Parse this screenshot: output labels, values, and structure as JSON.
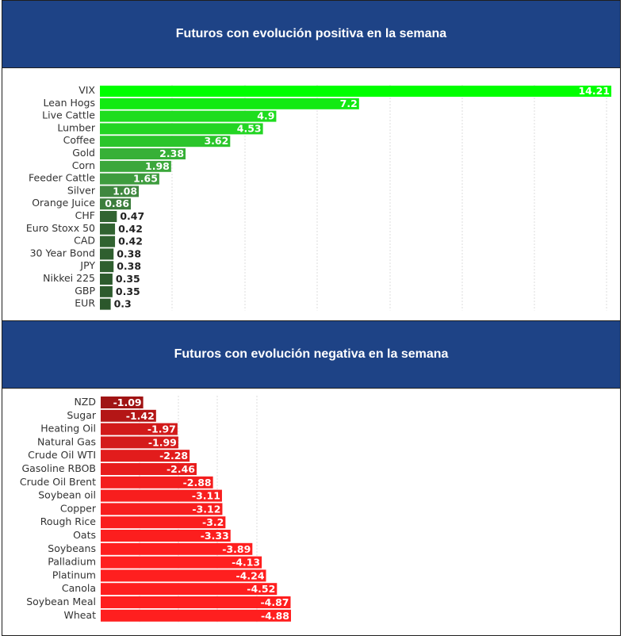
{
  "positive": {
    "title": "Futuros con evolución positiva en la semana",
    "chart_data": {
      "type": "bar",
      "orientation": "horizontal",
      "categories": [
        "VIX",
        "Lean Hogs",
        "Live Cattle",
        "Lumber",
        "Coffee",
        "Gold",
        "Corn",
        "Feeder Cattle",
        "Silver",
        "Orange Juice",
        "CHF",
        "Euro Stoxx 50",
        "CAD",
        "30 Year Bond",
        "JPY",
        "Nikkei 225",
        "GBP",
        "EUR"
      ],
      "values": [
        14.21,
        7.2,
        4.9,
        4.53,
        3.62,
        2.38,
        1.98,
        1.65,
        1.08,
        0.86,
        0.47,
        0.42,
        0.42,
        0.38,
        0.38,
        0.35,
        0.35,
        0.3
      ],
      "xlim": [
        0,
        14.21
      ],
      "grid": true,
      "colors": [
        "#00ff00",
        "#12ea12",
        "#1edd1e",
        "#23d523",
        "#2bc52b",
        "#37b037",
        "#3ba73b",
        "#3e9c3e",
        "#3f873f",
        "#3c7d3c",
        "#326432",
        "#316331",
        "#316331",
        "#2f5f2f",
        "#2f5f2f",
        "#2d5b2d",
        "#2d5b2d",
        "#2b572b"
      ]
    }
  },
  "negative": {
    "title": "Futuros con evolución negativa en la semana",
    "chart_data": {
      "type": "bar",
      "orientation": "horizontal",
      "categories": [
        "NZD",
        "Sugar",
        "Heating Oil",
        "Natural Gas",
        "Crude Oil WTI",
        "Gasoline RBOB",
        "Crude Oil Brent",
        "Soybean oil",
        "Copper",
        "Rough Rice",
        "Oats",
        "Soybeans",
        "Palladium",
        "Platinum",
        "Canola",
        "Soybean Meal",
        "Wheat"
      ],
      "values": [
        -1.09,
        -1.42,
        -1.97,
        -1.99,
        -2.28,
        -2.46,
        -2.88,
        -3.11,
        -3.12,
        -3.2,
        -3.33,
        -3.89,
        -4.13,
        -4.24,
        -4.52,
        -4.87,
        -4.88
      ],
      "xlim": [
        0,
        -4.88
      ],
      "grid": true,
      "colors": [
        "#a01414",
        "#b41616",
        "#d21a1a",
        "#d41a1a",
        "#e21c1c",
        "#e81c1c",
        "#f41e1e",
        "#f81e1e",
        "#f81e1e",
        "#fa1e1e",
        "#fc1e1e",
        "#ff1f1f",
        "#ff1f1f",
        "#ff1f1f",
        "#ff1f1f",
        "#ff1f1f",
        "#ff1f1f"
      ]
    }
  }
}
